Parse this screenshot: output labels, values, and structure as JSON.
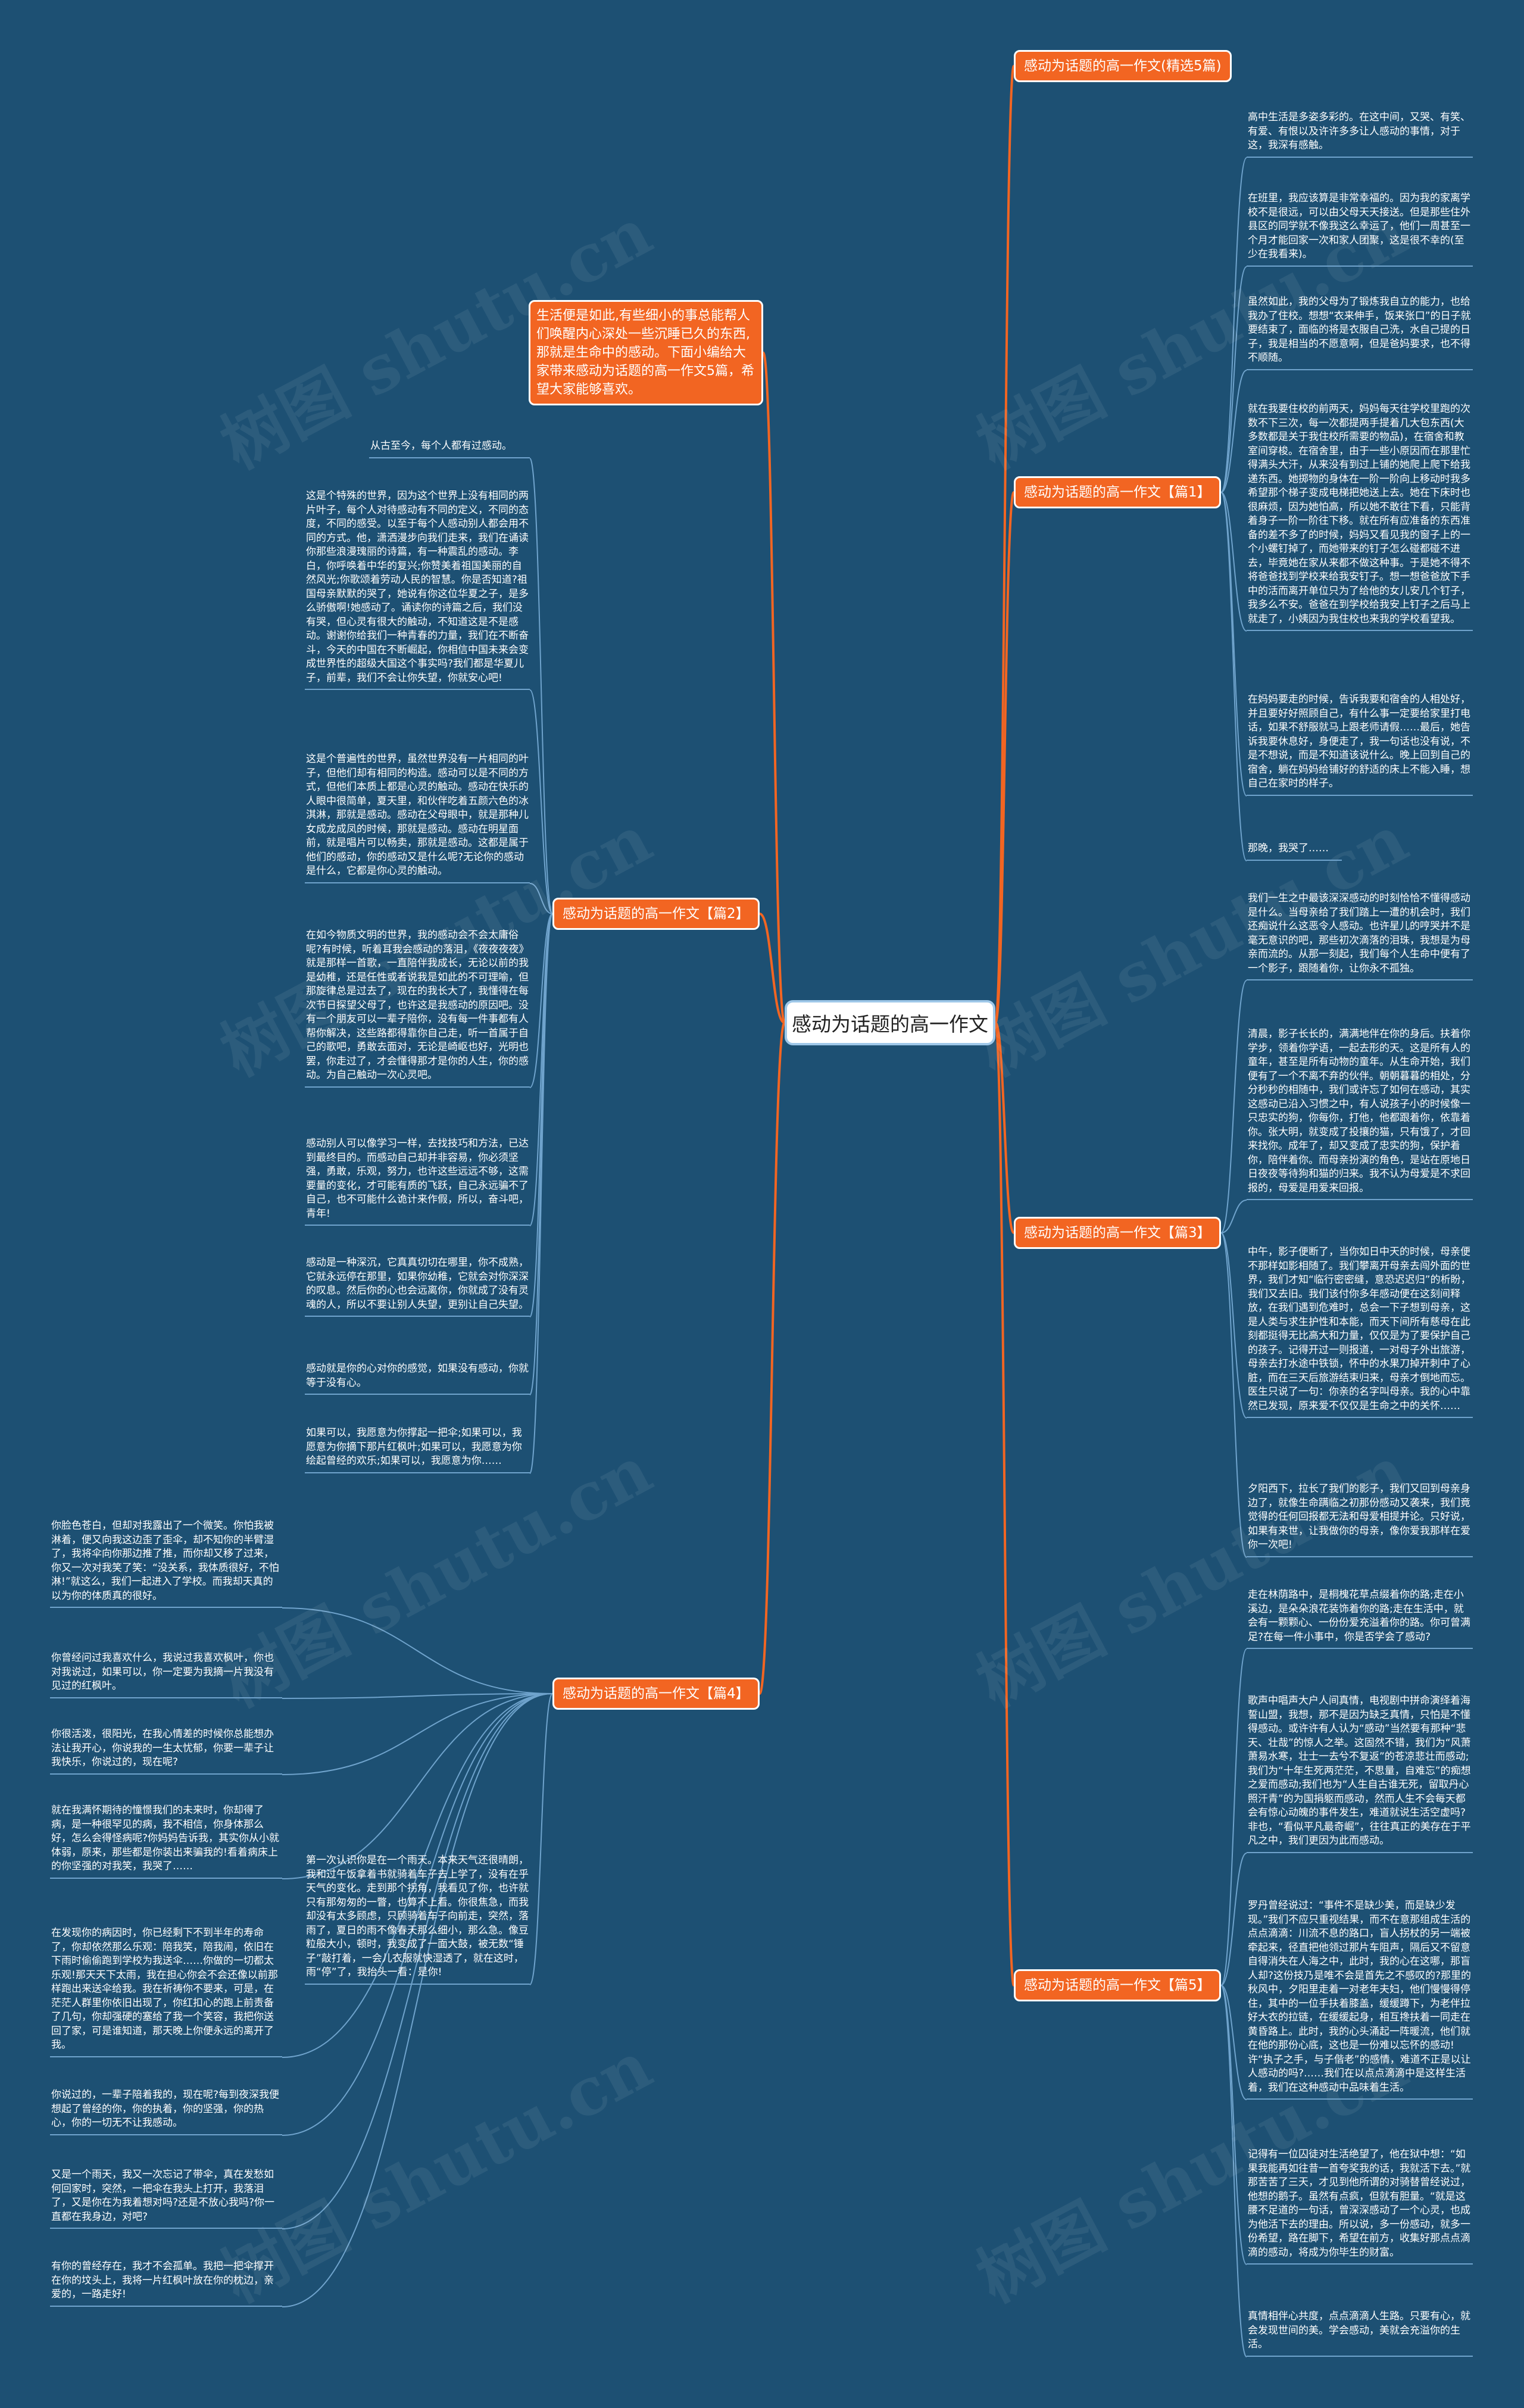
{
  "root": {
    "label": "感动为话题的高一作文"
  },
  "intro": {
    "text": "生活便是如此,有些细小的事总能帮人们唤醒内心深处一些沉睡已久的东西,那就是生命中的感动。下面小编给大家带来感动为话题的高一作文5篇，希望大家能够喜欢。"
  },
  "branches": {
    "b0": {
      "label": "感动为话题的高一作文(精选5篇)"
    },
    "b1": {
      "label": "感动为话题的高一作文【篇1】",
      "leaves": [
        "高中生活是多姿多彩的。在这中间，又哭、有笑、有爱、有恨以及许许多多让人感动的事情，对于这，我深有感触。",
        "在班里，我应该算是非常幸福的。因为我的家离学校不是很远，可以由父母天天接送。但是那些住外县区的同学就不像我这么幸运了，他们一周甚至一个月才能回家一次和家人团聚，这是很不幸的(至少在我看来)。",
        "虽然如此，我的父母为了锻炼我自立的能力，也给我办了住校。想想“衣来伸手，饭来张口”的日子就要结束了，面临的将是衣服自己洗，水自己提的日子，我是相当的不愿意啊，但是爸妈要求，也不得不顺随。",
        "就在我要住校的前两天，妈妈每天往学校里跑的次数不下三次，每一次都提两手提着几大包东西(大多数都是关于我住校所需要的物品)，在宿舍和教室间穿梭。在宿舍里，由于一些小原因而在那里忙得满头大汗，从来没有到过上铺的她爬上爬下给我递东西。她掷物的身体在一阶一阶向上移动时我多希望那个梯子变成电梯把她送上去。她在下床时也很麻烦，因为她怕高，所以她不敢往下看，只能背着身子一阶一阶往下移。就在所有应准备的东西准备的差不多了的时候，妈妈又看见我的窗子上的一个小螺钉掉了，而她带来的钉子怎么碰都碰不进去，毕竟她在家从来都不做这种事。于是她不得不将爸爸找到学校来给我安钉子。想一想爸爸放下手中的活而离开单位只为了给他的女儿安几个钉子，我多么不安。爸爸在到学校给我安上钉子之后马上就走了，小姨因为我住校也来我的学校看望我。",
        "在妈妈要走的时候，告诉我要和宿舍的人相处好，并且要好好照顾自己，有什么事一定要给家里打电话，如果不舒服就马上跟老师请假……最后，她告诉我要休息好，身便走了，我一句话也没有说，不是不想说，而是不知道该说什么。晚上回到自己的宿舍，躺在妈妈给铺好的舒适的床上不能入睡，想自己在家时的样子。",
        "那晚，我哭了……"
      ]
    },
    "b2": {
      "label": "感动为话题的高一作文【篇2】",
      "leaves": [
        "从古至今，每个人都有过感动。",
        "这是个特殊的世界，因为这个世界上没有相同的两片叶子，每个人对待感动有不同的定义，不同的态度，不同的感受。以至于每个人感动别人都会用不同的方式。他，潇洒漫步向我们走来，我们在诵读你那些浪漫瑰丽的诗篇，有一种震乱的感动。李白，你呼唤着中华的复兴;你赞美着祖国美丽的自然风光;你歌颂着劳动人民的智慧。你是否知道?祖国母亲默默的哭了，她说有你这位华夏之子，是多么骄傲啊!她感动了。诵读你的诗篇之后，我们没有哭，但心灵有很大的触动，不知道这是不是感动。谢谢你给我们一种青春的力量，我们在不断奋斗，今天的中国在不断崛起，你相信中国未来会变成世界性的超级大国这个事实吗?我们都是华夏儿子，前辈，我们不会让你失望，你就安心吧!",
        "这是个普遍性的世界，虽然世界没有一片相同的叶子，但他们却有相同的构造。感动可以是不同的方式，但他们本质上都是心灵的触动。感动在快乐的人眼中很简单，夏天里，和伙伴吃着五颜六色的冰淇淋，那就是感动。感动在父母眼中，就是那种儿女成龙成凤的时候，那就是感动。感动在明星面前，就是唱片可以畅卖，那就是感动。这都是属于他们的感动，你的感动又是什么呢?无论你的感动是什么，它都是你心灵的触动。",
        "在如今物质文明的世界，我的感动会不会太庸俗呢?有时候，听着耳我会感动的落泪，《夜夜夜夜》就是那样一首歌，一直陪伴我成长，无论以前的我是幼稚，还是任性或者说我是如此的不可理喻，但那旋律总是过去了，现在的我长大了，我懂得在每次节日探望父母了，也许这是我感动的原因吧。没有一个朋友可以一辈子陪你，没有每一件事都有人帮你解决，这些路都得靠你自己走，听一首属于自己的歌吧，勇敢去面对，无论是崎岖也好，光明也罢，你走过了，才会懂得那才是你的人生，你的感动。为自己触动一次心灵吧。",
        "感动别人可以像学习一样，去找技巧和方法，已达到最终目的。而感动自己却并非容易，你必须坚强，勇敢，乐观，努力，也许这些远远不够，这需要量的变化，才可能有质的飞跃，自己永远骗不了自己，也不可能什么诡计来作假，所以，奋斗吧，青年!",
        "感动是一种深沉，它真真切切在哪里，你不成熟，它就永远停在那里，如果你幼稚，它就会对你深深的叹息。然后你的心也会远离你，你就成了没有灵魂的人，所以不要让别人失望，更别让自己失望。",
        "感动就是你的心对你的感觉，如果没有感动，你就等于没有心。",
        "如果可以，我愿意为你撑起一把伞;如果可以，我愿意为你摘下那片红枫叶;如果可以，我愿意为你绘起曾经的欢乐;如果可以，我愿意为你……"
      ]
    },
    "b3": {
      "label": "感动为话题的高一作文【篇3】",
      "leaves": [
        "我们一生之中最该深深感动的时刻恰恰不懂得感动是什么。当母亲给了我们踏上一遭的机会时，我们还痴说什么这恶令人感动。也许星儿的哼哭并不是毫无意识的吧，那些初次滴落的泪珠，我想是为母亲而流的。从那一刻起，我们每个人生命中便有了一个影子，跟随着你，让你永不孤独。",
        "清晨，影子长长的，满满地伴在你的身后。扶着你学步，领着你学语，一起去形的天。这是所有人的童年，甚至是所有动物的童年。从生命开始，我们便有了一个不离不弃的伙伴。朝朝暮暮的相处，分分秒秒的相随中，我们或许忘了如何在感动，其实这感动已沿入习惯之中，有人说孩子小的时候像一只忠实的狗，你每你，打他，他都跟着你，依靠着你。张大明，就变成了投攘的猫，只有饿了，才回来找你。成年了，却又变成了忠实的狗，保护着你，陪伴着你。而母亲扮演的角色，是站在原地日日夜夜等待狗和猫的归来。我不认为母爱是不求回报的，母爱是用爱来回报。",
        "中午，影子便断了，当你如日中天的时候，母亲便不那样如影相随了。我们攀离开母亲去闯外面的世界，我们才知“临行密密缝，意恐迟迟归”的析盼，我们又去旧。我们该付你多年感动便在这刻间释放，在我们遇到危难时，总会一下子想到母亲，这是人类与求生护性和本能，而天下间所有慈母在此刻都挺得无比高大和力量，仅仅是为了要保护自己的孩子。记得开过一则报道，一对母子外出旅游，母亲去打水途中铁锁，怀中的水果刀掉开刺中了心脏，而在三天后旅游结束归来，母亲才倒地而忘。医生只说了一句：你亲的名字叫母亲。我的心中靠然已发现，原来爱不仅仅是生命之中的关怀……",
        "夕阳西下，拉长了我们的影子，我们又回到母亲身边了，就像生命蹒临之初那份感动又袭来，我们竟觉得的任何回报都无法和母爱相提并论。只好说，如果有来世，让我做你的母亲，像你爱我那样在爱你一次吧!"
      ]
    },
    "b4": {
      "label": "感动为话题的高一作文【篇4】",
      "leaves": [
        "你脸色苍白，但却对我露出了一个微笑。你怕我被淋着，便又向我这边歪了歪伞，却不知你的半臂湿了，我将伞向你那边推了推，而你却又移了过来，你又一次对我笑了笑：“没关系，我体质很好，不怕淋!”就这么，我们一起进入了学校。而我却天真的以为你的体质真的很好。",
        "你曾经问过我喜欢什么，我说过我喜欢枫叶，你也对我说过，如果可以，你一定要为我摘一片我没有见过的红枫叶。",
        "你很活泼，很阳光，在我心情差的时候你总能想办法让我开心，你说我的一生太忧郁，你要一辈子让我快乐，你说过的，现在呢?",
        "就在我满怀期待的憧憬我们的未来时，你却得了病，是一种很罕见的病，我不相信，你身体那么好，怎么会得怪病呢?你妈妈告诉我，其实你从小就体弱，原来，那些都是你装出来骗我的!看着病床上的你坚强的对我笑，我哭了……",
        "在发现你的病因时，你已经剩下不到半年的寿命了，你却依然那么乐观：陪我笑，陪我闹，依旧在下雨时偷偷跑到学校为我送伞……你做的一切都太乐观!那天天下太雨，我在担心你会不会还像以前那样跑出来送伞给我。我在祈祷你不要来，可是，在茫茫人群里你依旧出现了，你红扣心的跑上前责备了几句，你却强硬的塞给了我一个笑容，我把你送回了家，可是谁知道，那天晚上你便永远的离开了我。",
        "你说过的，一辈子陪着我的，现在呢?每到夜深我便想起了曾经的你，你的执着，你的坚强，你的热心，你的一切无不让我感动。",
        "又是一个雨天，我又一次忘记了带伞，真在发愁如何回家时，突然，一把伞在我头上打开，我落泪了，又是你在为我着想对吗?还是不放心我吗?你一直都在我身边，对吧?",
        "有你的曾经存在，我才不会孤单。我把一把伞撑开在你的坟头上，我将一片红枫叶放在你的枕边，亲爱的，一路走好!",
        "第一次认识你是在一个雨天。本来天气还很晴朗，我和过午饭拿着书就骑着车子去上学了，没有在乎天气的变化。走到那个拐角，我看见了你，也许就只有那匆匆的一瞥，也算不上看。你很焦急，而我却没有太多顾虑，只顾骑着车子向前走，突然，落雨了，夏日的雨不像春天那么细小，那么急。像豆粒般大小，顿时，我变成了一面大鼓，被无数“锤子”敲打着，一会儿衣服就快湿透了，就在这时，雨“停”了，我抬头一看：是你!"
      ]
    },
    "b5": {
      "label": "感动为话题的高一作文【篇5】",
      "leaves": [
        "走在林荫路中，是桐槐花草点缀着你的路;走在小溪边，是朵朵浪花装饰着你的路;走在生活中，就会有一颗颗心、一份份爱充溢着你的路。你可曾满足?在每一件小事中，你是否学会了感动?",
        "歌声中唱声大户人间真情，电视剧中拼命演绎着海誓山盟，我想，那不是因为缺乏真情，只怕是不懂得感动。或许许有人认为“感动”当然要有那种“悲天、壮哉”的惊人之举。这固然不错，我们为“风萧萧易水寒，壮士一去兮不复返”的苍凉悲壮而感动;我们为“十年生死两茫茫，不思量，自难忘”的痴想之爱而感动;我们也为“人生自古谁无死，留取丹心照汗青”的为国捐躯而感动，然而人生不会每天都会有惊心动魄的事件发生，难道就说生活空虚吗?非也，“看似平凡最奇崛”，往往真正的美存在于平凡之中，我们更因为此而感动。",
        "罗丹曾经说过：“事件不是缺少美，而是缺少发现。”我们不应只重视结果，而不在意那组成生活的点点滴滴：川流不息的路口，盲人拐杖的另一端被牵起来，径直把他领过那片车阻声，隔后又不留意自得消失在人海之中，此时，我的心在这哪，那盲人却?这份技乃是唯不会是首先之不感叹的?那里的秋风中，夕阳里走着一对老年夫妇，他们慢慢得停住，其中的一位手扶着膝盖，缓缓蹲下，为老伴拉好大衣的拉链，在缓缓起身，相互搀扶着一同走在黄昏路上。此时，我的心头涌起一阵暖流，他们就在他的那份心底，这也是一份难以忘怀的感动!许“执子之手，与子偕老”的感情，难道不正是以让人感动的吗?……我们在以点点滴滴中是这样生活着，我们在这种感动中品味着生活。",
        "记得有一位囚徒对生活绝望了，他在狱中想：“如果我能再如往昔一首夸奖我的话，我就活下去。”就那苦苦了三天，才见到他所谓的对骑替曾经说过，他想的鹅子。虽然有点疯，但就有胆量。“就是这腰不足道的一句话，曾深深感动了一个心灵，也成为他活下去的理由。所以说，多一份感动，就多一份希望，路在脚下，希望在前方，收集好那点点滴滴的感动，将成为你毕生的财富。",
        "真情相伴心共度，点点滴滴人生路。只要有心，就会发现世间的美。学会感动，美就会充溢你的生活。"
      ]
    }
  }
}
